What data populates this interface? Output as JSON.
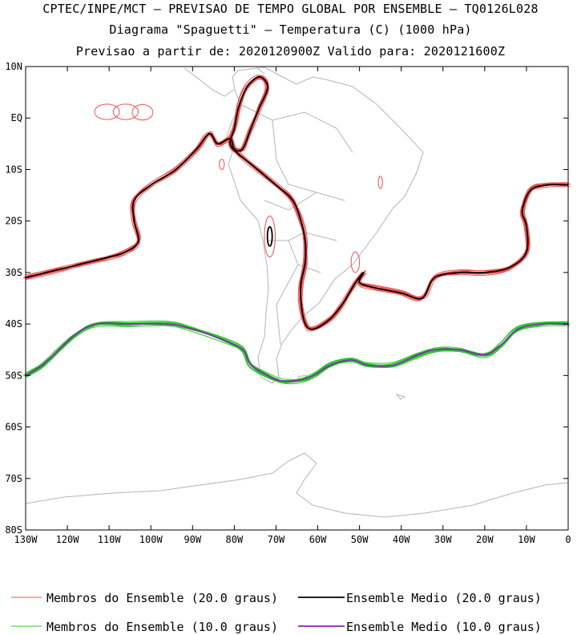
{
  "header": {
    "line1": "CPTEC/INPE/MCT – PREVISAO DE TEMPO GLOBAL POR ENSEMBLE – TQ0126L028",
    "line2": "Diagrama \"Spaguetti\" – Temperatura (C) (1000 hPa)",
    "line3": "Previsao a partir de: 2020120900Z  Valido para: 2020121600Z"
  },
  "map": {
    "lon_range": [
      -130,
      0
    ],
    "lat_range": [
      -80,
      10
    ],
    "lat_ticks": [
      "10N",
      "EQ",
      "10S",
      "20S",
      "30S",
      "40S",
      "50S",
      "60S",
      "70S",
      "80S"
    ],
    "lon_ticks": [
      "130W",
      "120W",
      "110W",
      "100W",
      "90W",
      "80W",
      "70W",
      "60W",
      "50W",
      "40W",
      "30W",
      "20W",
      "10W",
      "0"
    ],
    "coastline_color": "#b4b4b4",
    "member_20_color": "#f05050",
    "mean_20_color": "#000000",
    "member_10_color": "#20d020",
    "mean_10_color": "#9020c0"
  },
  "legend": {
    "member_20": "Membros do Ensemble (20.0 graus)",
    "mean_20": "Ensemble Medio (20.0 graus)",
    "member_10": "Membros do Ensemble (10.0 graus)",
    "mean_10": "Ensemble Medio (10.0 graus)"
  }
}
